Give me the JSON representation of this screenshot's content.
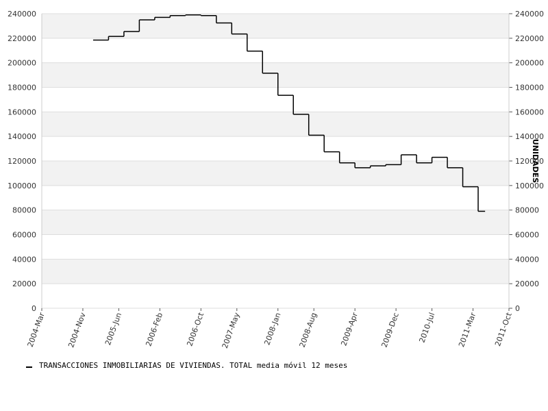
{
  "chart_data": {
    "type": "line",
    "step": true,
    "y2_label": "UNIDADES",
    "x": [
      "2005-01",
      "2005-04",
      "2005-07",
      "2005-10",
      "2006-01",
      "2006-04",
      "2006-07",
      "2006-10",
      "2007-01",
      "2007-04",
      "2007-07",
      "2007-10",
      "2008-01",
      "2008-04",
      "2008-07",
      "2008-10",
      "2009-01",
      "2009-04",
      "2009-07",
      "2009-10",
      "2010-01",
      "2010-04",
      "2010-07",
      "2010-10",
      "2011-01",
      "2011-04"
    ],
    "series": [
      {
        "name": "TRANSACCIONES INMOBILIARIAS DE VIVIENDAS. TOTAL media móvil 12 meses",
        "color": "#000000",
        "values": [
          218500,
          221500,
          225500,
          235000,
          237000,
          238500,
          239000,
          238500,
          232500,
          223500,
          209500,
          191500,
          173500,
          158000,
          141000,
          127500,
          118500,
          114500,
          116000,
          117000,
          125000,
          118500,
          123000,
          114500,
          99000,
          79000
        ]
      }
    ],
    "xlim": [
      "2004-03",
      "2011-10"
    ],
    "xticks": [
      {
        "value": "2004-03",
        "label": "2004-Mar"
      },
      {
        "value": "2004-11",
        "label": "2004-Nov"
      },
      {
        "value": "2005-06",
        "label": "2005-Jun"
      },
      {
        "value": "2006-02",
        "label": "2006-Feb"
      },
      {
        "value": "2006-10",
        "label": "2006-Oct"
      },
      {
        "value": "2007-05",
        "label": "2007-May"
      },
      {
        "value": "2008-01",
        "label": "2008-Jan"
      },
      {
        "value": "2008-08",
        "label": "2008-Aug"
      },
      {
        "value": "2009-04",
        "label": "2009-Apr"
      },
      {
        "value": "2009-12",
        "label": "2009-Dec"
      },
      {
        "value": "2010-07",
        "label": "2010-Jul"
      },
      {
        "value": "2011-03",
        "label": "2011-Mar"
      },
      {
        "value": "2011-10",
        "label": "2011-Oct"
      }
    ],
    "ylim": [
      0,
      240000
    ],
    "yticks": [
      0,
      20000,
      40000,
      60000,
      80000,
      100000,
      120000,
      140000,
      160000,
      180000,
      200000,
      220000,
      240000
    ],
    "y2lim": [
      0,
      240000
    ],
    "y2ticks": [
      0,
      20000,
      40000,
      60000,
      80000,
      100000,
      120000,
      140000,
      160000,
      180000,
      200000,
      220000,
      240000
    ],
    "grid": true,
    "banded": true,
    "legend": "bottom-left"
  }
}
